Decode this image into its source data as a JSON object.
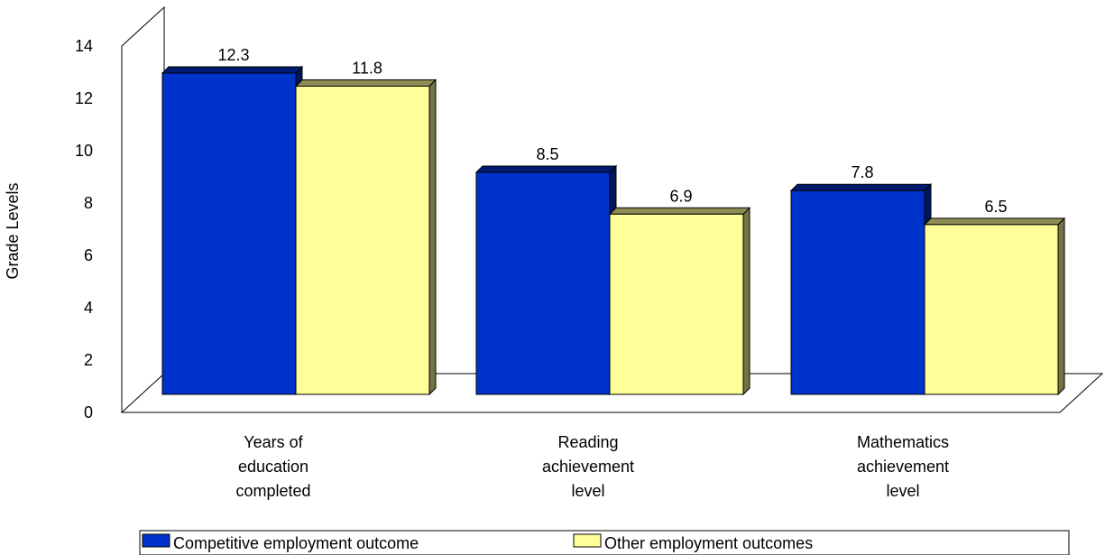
{
  "chart_data": {
    "type": "bar",
    "ylabel": "Grade Levels",
    "ylim": [
      0,
      14
    ],
    "yticks": [
      0,
      2,
      4,
      6,
      8,
      10,
      12,
      14
    ],
    "categories": [
      [
        "Years of",
        "education",
        "completed"
      ],
      [
        "Reading",
        "achievement",
        "level"
      ],
      [
        "Mathematics",
        "achievement",
        "level"
      ]
    ],
    "series": [
      {
        "name": "Competitive employment outcome",
        "values": [
          12.3,
          8.5,
          7.8
        ],
        "color": "#0033cc"
      },
      {
        "name": "Other employment outcomes",
        "values": [
          11.8,
          6.9,
          6.5
        ],
        "color": "#ffff99"
      }
    ],
    "legend": "bottom",
    "grid": false,
    "style": "3d"
  }
}
